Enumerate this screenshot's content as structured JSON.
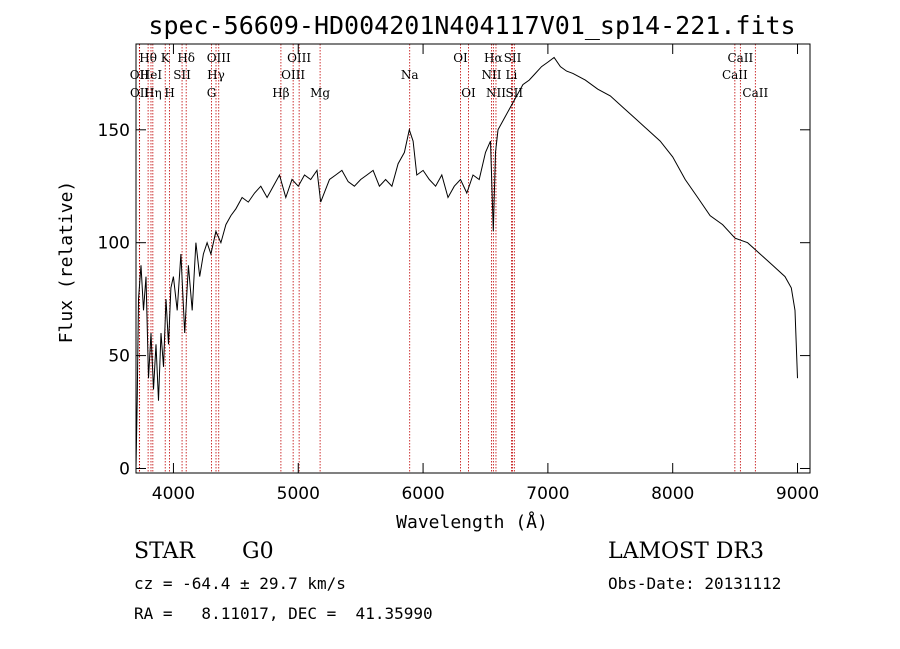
{
  "chart_data": {
    "type": "line",
    "title": "spec-56609-HD004201N404117V01_sp14-221.fits",
    "xlabel": "Wavelength (Å)",
    "ylabel": "Flux (relative)",
    "xlim": [
      3700,
      9100
    ],
    "ylim": [
      -2,
      188
    ],
    "xticks": [
      4000,
      5000,
      6000,
      7000,
      8000,
      9000
    ],
    "yticks": [
      0,
      50,
      100,
      150
    ],
    "grid": false,
    "series": [
      {
        "x": [
          3700,
          3710,
          3720,
          3740,
          3760,
          3780,
          3800,
          3820,
          3840,
          3860,
          3880,
          3900,
          3920,
          3940,
          3960,
          3980,
          4000,
          4030,
          4060,
          4090,
          4120,
          4150,
          4180,
          4210,
          4240,
          4270,
          4300,
          4340,
          4380,
          4420,
          4460,
          4500,
          4550,
          4600,
          4650,
          4700,
          4750,
          4800,
          4850,
          4900,
          4950,
          5000,
          5050,
          5100,
          5150,
          5180,
          5250,
          5300,
          5350,
          5400,
          5450,
          5500,
          5550,
          5600,
          5650,
          5700,
          5750,
          5800,
          5850,
          5890,
          5920,
          5950,
          6000,
          6050,
          6100,
          6150,
          6200,
          6250,
          6300,
          6350,
          6400,
          6450,
          6500,
          6540,
          6563,
          6580,
          6600,
          6650,
          6700,
          6750,
          6800,
          6850,
          6900,
          6950,
          7000,
          7050,
          7100,
          7150,
          7200,
          7300,
          7400,
          7500,
          7600,
          7700,
          7800,
          7900,
          8000,
          8100,
          8200,
          8300,
          8400,
          8500,
          8600,
          8700,
          8800,
          8900,
          8950,
          8980,
          9000
        ],
        "y": [
          0,
          30,
          75,
          90,
          70,
          85,
          40,
          60,
          35,
          55,
          30,
          60,
          45,
          75,
          55,
          80,
          85,
          70,
          95,
          60,
          90,
          70,
          100,
          85,
          95,
          100,
          95,
          105,
          100,
          108,
          112,
          115,
          120,
          118,
          122,
          125,
          120,
          125,
          130,
          120,
          128,
          125,
          130,
          128,
          132,
          118,
          128,
          130,
          132,
          127,
          125,
          128,
          130,
          132,
          125,
          128,
          125,
          135,
          140,
          150,
          145,
          130,
          132,
          128,
          125,
          130,
          120,
          125,
          128,
          122,
          130,
          128,
          140,
          145,
          105,
          140,
          150,
          155,
          160,
          165,
          170,
          172,
          175,
          178,
          180,
          182,
          178,
          176,
          175,
          172,
          168,
          165,
          160,
          155,
          150,
          145,
          138,
          128,
          120,
          112,
          108,
          102,
          100,
          95,
          90,
          85,
          80,
          70,
          40
        ]
      }
    ],
    "lines": [
      {
        "name": "OII",
        "x": 3727,
        "row": 2
      },
      {
        "name": "OII",
        "x": 3729,
        "row": 3
      },
      {
        "name": "Hθ",
        "x": 3797,
        "row": 1
      },
      {
        "name": "HeI",
        "x": 3820,
        "row": 2
      },
      {
        "name": "Hη",
        "x": 3835,
        "row": 3
      },
      {
        "name": "K",
        "x": 3934,
        "row": 1
      },
      {
        "name": "H",
        "x": 3969,
        "row": 3
      },
      {
        "name": "SII",
        "x": 4069,
        "row": 2
      },
      {
        "name": "Hδ",
        "x": 4102,
        "row": 1
      },
      {
        "name": "OIII",
        "x": 4363,
        "row": 1
      },
      {
        "name": "Hγ",
        "x": 4341,
        "row": 2
      },
      {
        "name": "G",
        "x": 4305,
        "row": 3
      },
      {
        "name": "Hβ",
        "x": 4861,
        "row": 3
      },
      {
        "name": "OIII",
        "x": 4959,
        "row": 2
      },
      {
        "name": "OIII",
        "x": 5007,
        "row": 1
      },
      {
        "name": "Mg",
        "x": 5175,
        "row": 3
      },
      {
        "name": "Na",
        "x": 5893,
        "row": 2
      },
      {
        "name": "OI",
        "x": 6300,
        "row": 1
      },
      {
        "name": "OI",
        "x": 6364,
        "row": 3
      },
      {
        "name": "NII",
        "x": 6548,
        "row": 2
      },
      {
        "name": "NII",
        "x": 6584,
        "row": 3
      },
      {
        "name": "Hα",
        "x": 6563,
        "row": 1
      },
      {
        "name": "Li",
        "x": 6708,
        "row": 2
      },
      {
        "name": "SII",
        "x": 6717,
        "row": 1
      },
      {
        "name": "SII",
        "x": 6731,
        "row": 3
      },
      {
        "name": "CaII",
        "x": 8498,
        "row": 2
      },
      {
        "name": "CaII",
        "x": 8542,
        "row": 1
      },
      {
        "name": "CaII",
        "x": 8662,
        "row": 3
      }
    ]
  },
  "info": {
    "object_class": "STAR",
    "subclass": "G0",
    "survey": "LAMOST DR3",
    "cz": "cz = -64.4 ± 29.7 km/s",
    "obs_date": "Obs-Date: 20131112",
    "radec": "RA =   8.11017, DEC =  41.35990"
  },
  "colors": {
    "emission_line": "#c00000",
    "spectrum": "#000000"
  }
}
